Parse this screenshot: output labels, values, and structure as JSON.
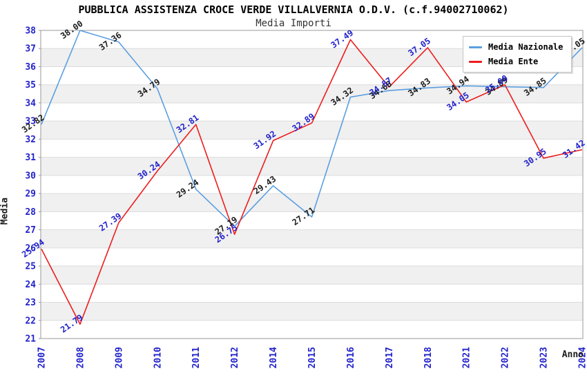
{
  "title": "PUBBLICA ASSISTENZA CROCE VERDE VILLALVERNIA O.D.V. (c.f.94002710062)",
  "subtitle": "Media Importi",
  "axes": {
    "y_title": "Media",
    "x_title": "Anno",
    "y_min": 21,
    "y_max": 38,
    "y_step": 1
  },
  "colors": {
    "series_nazionale": "#5b9ee0",
    "series_ente": "#ed1c1c",
    "axis_text": "#2222cc",
    "nazionale_label_text": "#1c1c1c",
    "ente_label_text": "#2222cc",
    "band": "#f0f0f0",
    "grid": "#dcdcdc",
    "plot_border": "#9a9a9a",
    "title_text": "#000000",
    "subtitle_text": "#333333"
  },
  "chart_data": {
    "type": "line",
    "title": "PUBBLICA ASSISTENZA CROCE VERDE VILLALVERNIA O.D.V. (c.f.94002710062)",
    "subtitle": "Media Importi",
    "xlabel": "Anno",
    "ylabel": "Media",
    "ylim": [
      21,
      38
    ],
    "y_tick_step": 1,
    "grid": true,
    "banded_background": true,
    "legend_position": "top-right",
    "categories": [
      "2007",
      "2008",
      "2009",
      "2010",
      "2011",
      "2012",
      "2014",
      "2015",
      "2016",
      "2017",
      "2018",
      "2021",
      "2022",
      "2023",
      "2024"
    ],
    "series": [
      {
        "name": "Media Nazionale",
        "color": "#5b9ee0",
        "label_color": "#1c1c1c",
        "values": [
          32.82,
          38.0,
          37.36,
          34.79,
          29.24,
          27.19,
          29.43,
          27.71,
          34.32,
          34.68,
          34.83,
          34.94,
          34.89,
          34.85,
          37.05
        ]
      },
      {
        "name": "Media Ente",
        "color": "#ed1c1c",
        "label_color": "#2222cc",
        "values": [
          25.94,
          21.79,
          27.39,
          30.24,
          32.81,
          26.75,
          31.92,
          32.89,
          37.49,
          34.87,
          37.05,
          34.05,
          35.0,
          30.95,
          31.42
        ]
      }
    ]
  }
}
